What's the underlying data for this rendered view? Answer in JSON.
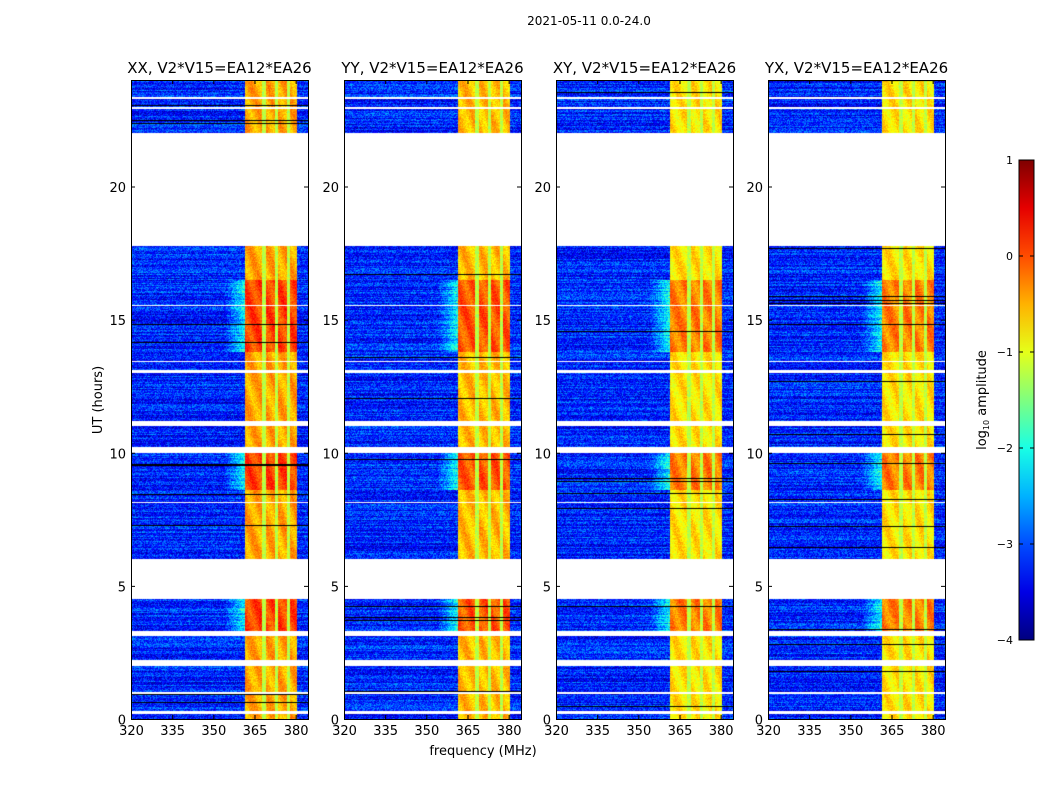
{
  "chart_data": {
    "type": "heatmap",
    "suptitle": "2021-05-11 0.0-24.0",
    "xlabel": "frequency (MHz)",
    "ylabel": "UT (hours)",
    "xlim": [
      320,
      384.5
    ],
    "ylim": [
      0,
      24
    ],
    "xticks": [
      320,
      335,
      350,
      365,
      380
    ],
    "yticks": [
      0,
      5,
      10,
      15,
      20
    ],
    "panels": [
      {
        "title": "XX, V2*V15=EA12*EA26",
        "band_level": 0.0
      },
      {
        "title": "YY, V2*V15=EA12*EA26",
        "band_level": -0.1
      },
      {
        "title": "XY, V2*V15=EA12*EA26",
        "band_level": -0.3
      },
      {
        "title": "YX, V2*V15=EA12*EA26",
        "band_level": -0.3
      }
    ],
    "bright_band_mhz": [
      361.5,
      380.5
    ],
    "band_channel_edges_mhz": [
      368.5,
      373,
      377.5
    ],
    "background_level": -3.2,
    "flagged_hours": [
      [
        0.2,
        0.3
      ],
      [
        0.95,
        1.0
      ],
      [
        2.0,
        2.2
      ],
      [
        3.1,
        3.3
      ],
      [
        4.5,
        6.0
      ],
      [
        8.1,
        8.15
      ],
      [
        10.0,
        10.2
      ],
      [
        11.0,
        11.2
      ],
      [
        13.0,
        13.1
      ],
      [
        13.4,
        13.45
      ],
      [
        15.5,
        15.55
      ],
      [
        17.75,
        22.0
      ],
      [
        22.9,
        23.0
      ],
      [
        23.3,
        23.35
      ]
    ],
    "bright_hours": [
      [
        3.3,
        4.5
      ],
      [
        8.6,
        10.0
      ],
      [
        13.8,
        16.5
      ]
    ],
    "colorbar": {
      "label_main": "log",
      "label_sub": "10",
      "label_rest": " amplitude",
      "range": [
        -4,
        1
      ],
      "ticks": [
        1,
        0,
        -1,
        -2,
        -3,
        -4
      ],
      "tick_labels": [
        "1",
        "0",
        "−1",
        "−2",
        "−3",
        "−4"
      ]
    }
  }
}
